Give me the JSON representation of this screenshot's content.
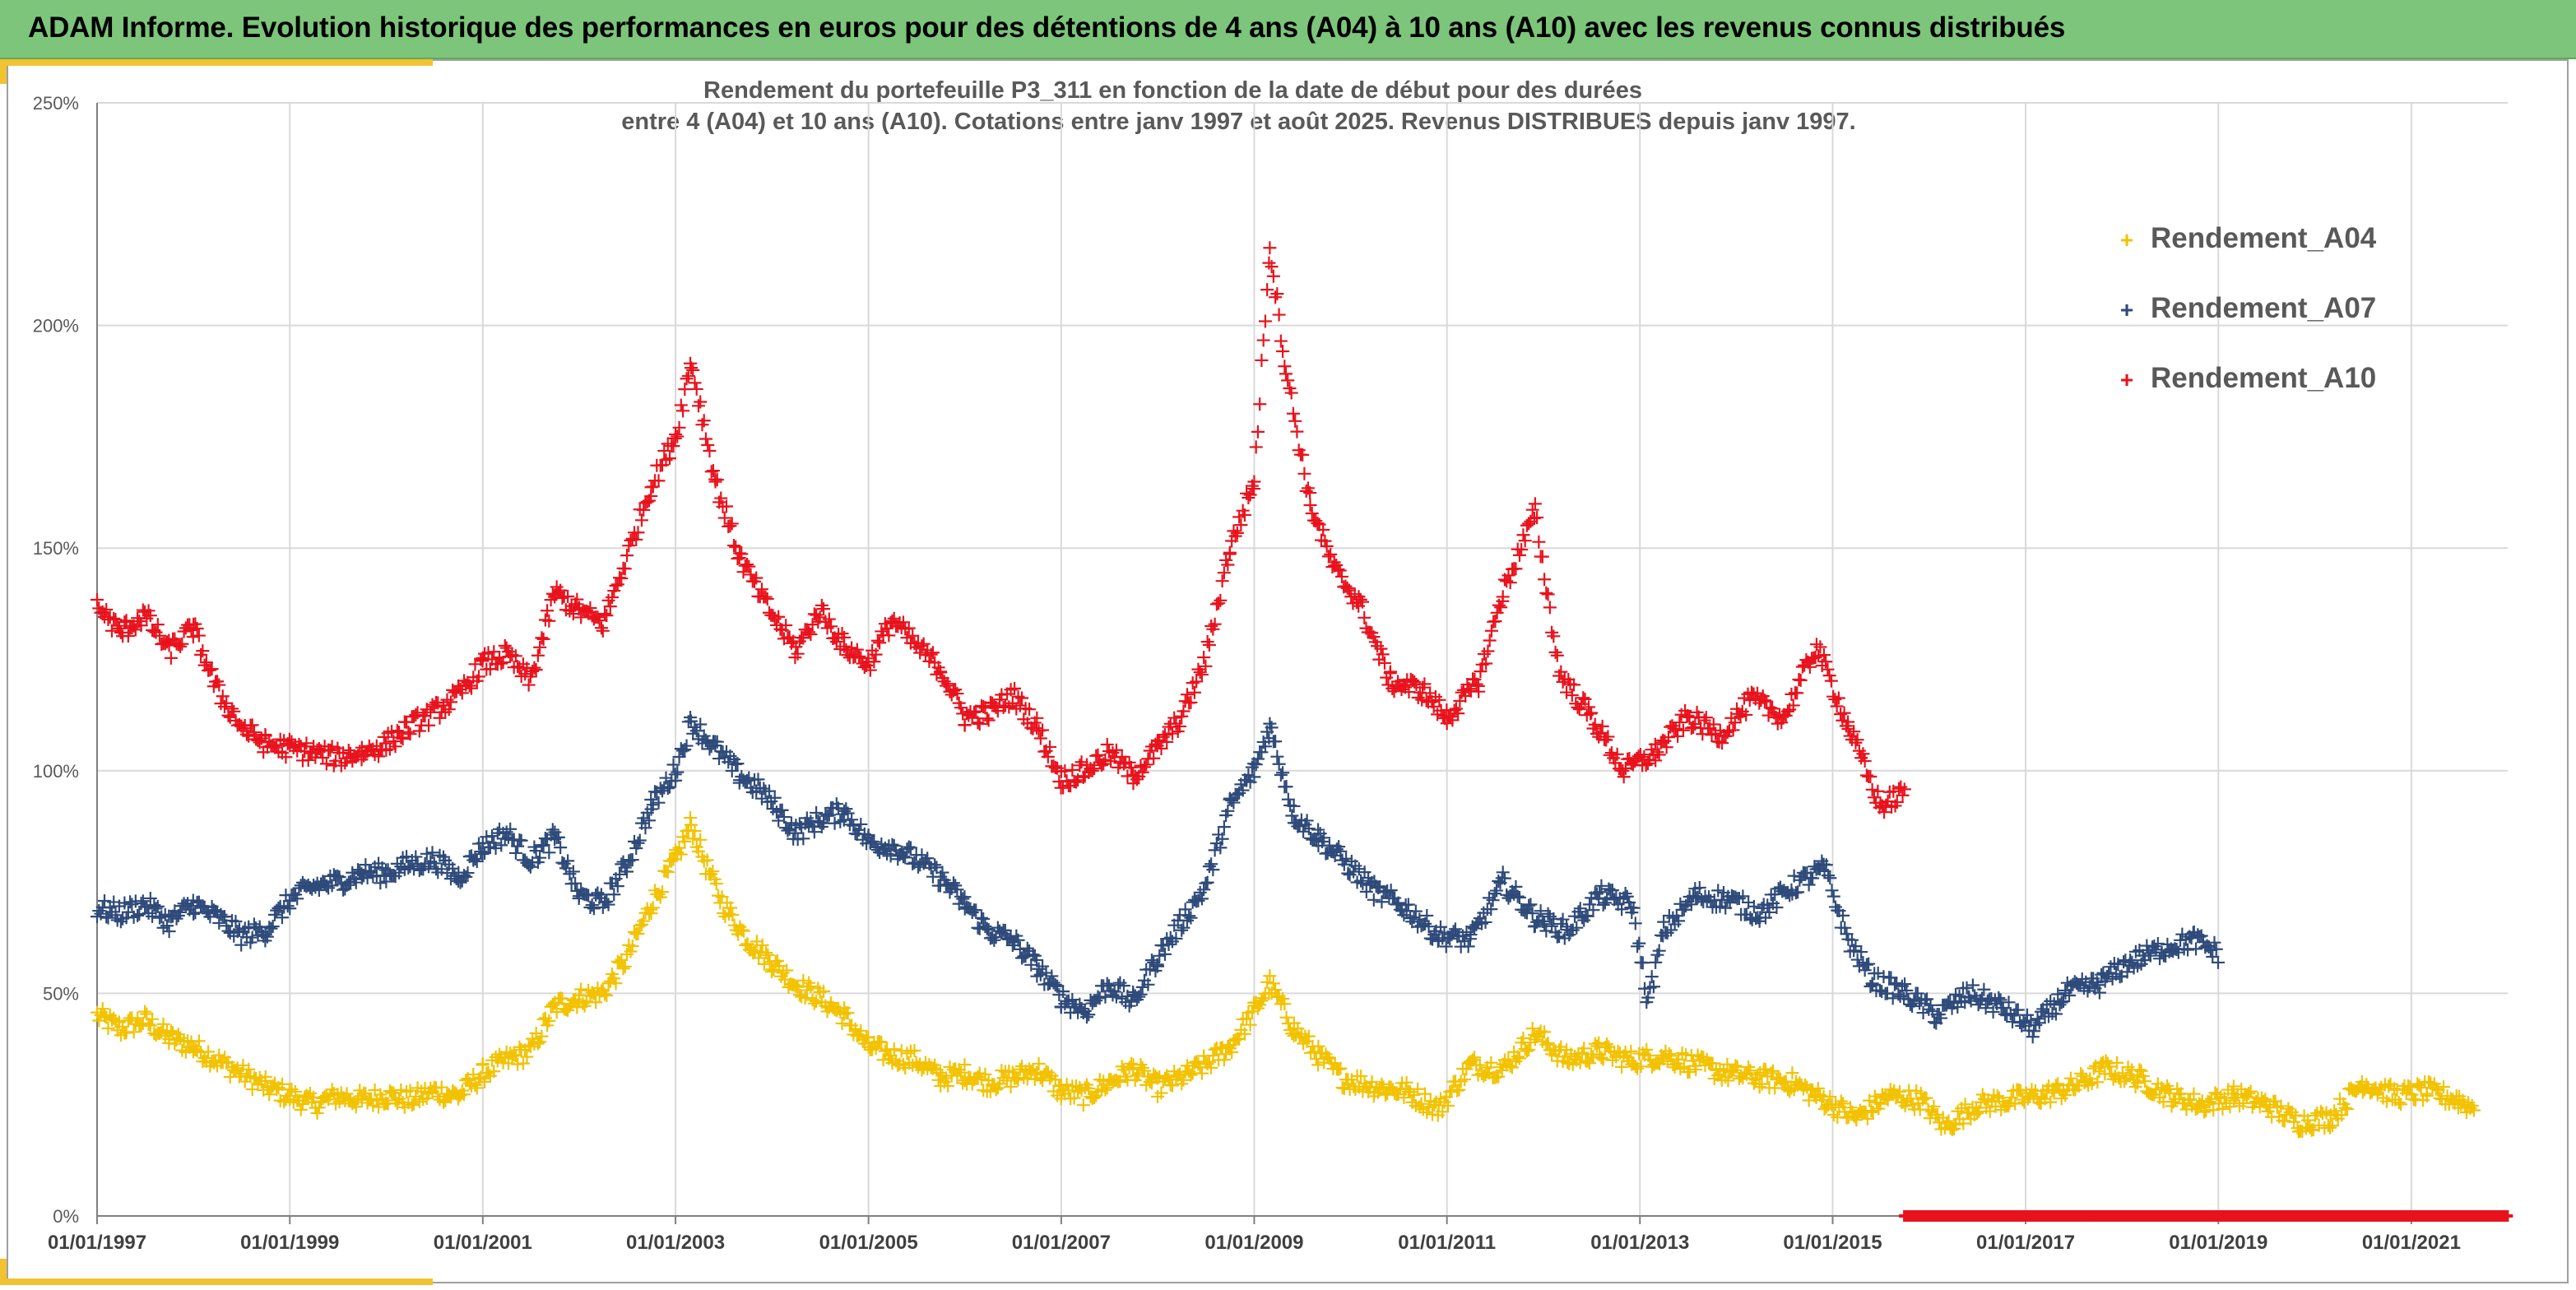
{
  "header": {
    "title": "ADAM Informe. Evolution historique des performances en euros pour des détentions de 4 ans (A04) à 10 ans (A10) avec les revenus connus distribués"
  },
  "chart_data": {
    "type": "scatter",
    "title_line1": "Rendement du portefeuille P3_311 en fonction de la date de début pour des durées",
    "title_line2": "entre 4 (A04) et 10 ans (A10). Cotations entre janv 1997 et août 2025. Revenus DISTRIBUES depuis janv 1997.",
    "xlabel": "",
    "ylabel": "",
    "xlim": [
      "1997-01-01",
      "2022-01-01"
    ],
    "ylim": [
      0,
      250
    ],
    "y_ticks": [
      "0%",
      "50%",
      "100%",
      "150%",
      "200%",
      "250%"
    ],
    "x_ticks": [
      "01/01/1997",
      "01/01/1999",
      "01/01/2001",
      "01/01/2003",
      "01/01/2005",
      "01/01/2007",
      "01/01/2009",
      "01/01/2011",
      "01/01/2013",
      "01/01/2015",
      "01/01/2017",
      "01/01/2019",
      "01/01/2021"
    ],
    "grid": true,
    "legend_position": "top-right",
    "marker": "+",
    "series": [
      {
        "name": "Rendement_A04",
        "color": "#f2c200",
        "points": [
          [
            "1997-01-01",
            45
          ],
          [
            "1997-04-01",
            42
          ],
          [
            "1997-07-01",
            44
          ],
          [
            "1997-10-01",
            40
          ],
          [
            "1998-01-01",
            38
          ],
          [
            "1998-04-01",
            35
          ],
          [
            "1998-07-01",
            32
          ],
          [
            "1998-10-01",
            29
          ],
          [
            "1999-01-01",
            27
          ],
          [
            "1999-04-01",
            25
          ],
          [
            "1999-07-01",
            27
          ],
          [
            "1999-10-01",
            26
          ],
          [
            "2000-01-01",
            27
          ],
          [
            "2000-04-01",
            26
          ],
          [
            "2000-07-01",
            28
          ],
          [
            "2000-10-01",
            27
          ],
          [
            "2001-01-01",
            32
          ],
          [
            "2001-04-01",
            35
          ],
          [
            "2001-07-01",
            37
          ],
          [
            "2001-10-01",
            47
          ],
          [
            "2002-01-01",
            49
          ],
          [
            "2002-04-01",
            50
          ],
          [
            "2002-07-01",
            58
          ],
          [
            "2002-10-01",
            70
          ],
          [
            "2003-01-01",
            80
          ],
          [
            "2003-03-01",
            88
          ],
          [
            "2003-05-01",
            78
          ],
          [
            "2003-07-01",
            70
          ],
          [
            "2003-10-01",
            62
          ],
          [
            "2004-01-01",
            57
          ],
          [
            "2004-04-01",
            52
          ],
          [
            "2004-07-01",
            49
          ],
          [
            "2004-10-01",
            45
          ],
          [
            "2005-01-01",
            38
          ],
          [
            "2005-04-01",
            36
          ],
          [
            "2005-07-01",
            35
          ],
          [
            "2005-10-01",
            31
          ],
          [
            "2006-01-01",
            32
          ],
          [
            "2006-04-01",
            30
          ],
          [
            "2006-07-01",
            31
          ],
          [
            "2006-10-01",
            33
          ],
          [
            "2007-01-01",
            28
          ],
          [
            "2007-04-01",
            27
          ],
          [
            "2007-07-01",
            30
          ],
          [
            "2007-10-01",
            33
          ],
          [
            "2008-01-01",
            29
          ],
          [
            "2008-04-01",
            31
          ],
          [
            "2008-07-01",
            34
          ],
          [
            "2008-10-01",
            38
          ],
          [
            "2009-01-01",
            46
          ],
          [
            "2009-03-01",
            52
          ],
          [
            "2009-06-01",
            42
          ],
          [
            "2009-09-01",
            36
          ],
          [
            "2009-12-01",
            31
          ],
          [
            "2010-04-01",
            29
          ],
          [
            "2010-08-01",
            28
          ],
          [
            "2010-12-01",
            24
          ],
          [
            "2011-04-01",
            34
          ],
          [
            "2011-08-01",
            33
          ],
          [
            "2011-12-01",
            41
          ],
          [
            "2012-04-01",
            35
          ],
          [
            "2012-08-01",
            37
          ],
          [
            "2012-12-01",
            35
          ],
          [
            "2013-04-01",
            36
          ],
          [
            "2013-08-01",
            34
          ],
          [
            "2013-12-01",
            32
          ],
          [
            "2014-04-01",
            31
          ],
          [
            "2014-08-01",
            30
          ],
          [
            "2014-12-01",
            26
          ],
          [
            "2015-04-01",
            22
          ],
          [
            "2015-08-01",
            27
          ],
          [
            "2015-12-01",
            26
          ],
          [
            "2016-03-01",
            20
          ],
          [
            "2016-07-01",
            25
          ],
          [
            "2016-11-01",
            26
          ],
          [
            "2017-03-01",
            27
          ],
          [
            "2017-07-01",
            29
          ],
          [
            "2017-11-01",
            33
          ],
          [
            "2018-03-01",
            31
          ],
          [
            "2018-07-01",
            27
          ],
          [
            "2018-11-01",
            25
          ],
          [
            "2019-03-01",
            27
          ],
          [
            "2019-07-01",
            25
          ],
          [
            "2019-11-01",
            21
          ],
          [
            "2020-03-01",
            22
          ],
          [
            "2020-07-01",
            30
          ],
          [
            "2020-11-01",
            27
          ],
          [
            "2021-03-01",
            28
          ],
          [
            "2021-07-01",
            26
          ],
          [
            "2021-09-01",
            24
          ]
        ]
      },
      {
        "name": "Rendement_A07",
        "color": "#2e4a7a",
        "points": [
          [
            "1997-01-01",
            69
          ],
          [
            "1997-04-01",
            68
          ],
          [
            "1997-07-01",
            70
          ],
          [
            "1997-10-01",
            66
          ],
          [
            "1998-01-01",
            70
          ],
          [
            "1998-04-01",
            67
          ],
          [
            "1998-07-01",
            63
          ],
          [
            "1998-10-01",
            64
          ],
          [
            "1999-01-01",
            71
          ],
          [
            "1999-04-01",
            74
          ],
          [
            "1999-07-01",
            75
          ],
          [
            "1999-10-01",
            77
          ],
          [
            "2000-01-01",
            77
          ],
          [
            "2000-04-01",
            79
          ],
          [
            "2000-07-01",
            80
          ],
          [
            "2000-10-01",
            76
          ],
          [
            "2001-01-01",
            83
          ],
          [
            "2001-04-01",
            86
          ],
          [
            "2001-07-01",
            80
          ],
          [
            "2001-10-01",
            85
          ],
          [
            "2002-01-01",
            72
          ],
          [
            "2002-04-01",
            70
          ],
          [
            "2002-07-01",
            79
          ],
          [
            "2002-10-01",
            92
          ],
          [
            "2003-01-01",
            100
          ],
          [
            "2003-03-01",
            111
          ],
          [
            "2003-06-01",
            105
          ],
          [
            "2003-09-01",
            99
          ],
          [
            "2003-12-01",
            95
          ],
          [
            "2004-04-01",
            86
          ],
          [
            "2004-07-01",
            89
          ],
          [
            "2004-10-01",
            91
          ],
          [
            "2005-01-01",
            84
          ],
          [
            "2005-04-01",
            83
          ],
          [
            "2005-07-01",
            80
          ],
          [
            "2005-10-01",
            76
          ],
          [
            "2006-01-01",
            70
          ],
          [
            "2006-04-01",
            64
          ],
          [
            "2006-07-01",
            62
          ],
          [
            "2006-10-01",
            56
          ],
          [
            "2007-01-01",
            49
          ],
          [
            "2007-04-01",
            46
          ],
          [
            "2007-07-01",
            52
          ],
          [
            "2007-10-01",
            48
          ],
          [
            "2008-01-01",
            58
          ],
          [
            "2008-04-01",
            66
          ],
          [
            "2008-07-01",
            74
          ],
          [
            "2008-10-01",
            92
          ],
          [
            "2009-01-01",
            100
          ],
          [
            "2009-03-01",
            110
          ],
          [
            "2009-06-01",
            90
          ],
          [
            "2009-09-01",
            85
          ],
          [
            "2009-12-01",
            80
          ],
          [
            "2010-04-01",
            73
          ],
          [
            "2010-08-01",
            69
          ],
          [
            "2010-12-01",
            63
          ],
          [
            "2011-04-01",
            62
          ],
          [
            "2011-08-01",
            75
          ],
          [
            "2011-12-01",
            67
          ],
          [
            "2012-04-01",
            64
          ],
          [
            "2012-08-01",
            72
          ],
          [
            "2012-12-01",
            70
          ],
          [
            "2013-02-01",
            48
          ],
          [
            "2013-04-01",
            64
          ],
          [
            "2013-08-01",
            72
          ],
          [
            "2013-12-01",
            71
          ],
          [
            "2014-04-01",
            68
          ],
          [
            "2014-08-01",
            74
          ],
          [
            "2014-12-01",
            78
          ],
          [
            "2015-03-01",
            62
          ],
          [
            "2015-06-01",
            53
          ],
          [
            "2015-10-01",
            50
          ],
          [
            "2016-02-01",
            45
          ],
          [
            "2016-06-01",
            50
          ],
          [
            "2016-10-01",
            47
          ],
          [
            "2017-02-01",
            42
          ],
          [
            "2017-06-01",
            50
          ],
          [
            "2017-10-01",
            52
          ],
          [
            "2018-02-01",
            57
          ],
          [
            "2018-06-01",
            60
          ],
          [
            "2018-10-01",
            62
          ],
          [
            "2019-01-01",
            59
          ]
        ]
      },
      {
        "name": "Rendement_A10",
        "color": "#e8121c",
        "points": [
          [
            "1997-01-01",
            137
          ],
          [
            "1997-04-01",
            131
          ],
          [
            "1997-07-01",
            135
          ],
          [
            "1997-10-01",
            127
          ],
          [
            "1998-01-01",
            132
          ],
          [
            "1998-04-01",
            118
          ],
          [
            "1998-07-01",
            110
          ],
          [
            "1998-10-01",
            106
          ],
          [
            "1999-01-01",
            105
          ],
          [
            "1999-04-01",
            104
          ],
          [
            "1999-07-01",
            103
          ],
          [
            "1999-10-01",
            104
          ],
          [
            "2000-01-01",
            106
          ],
          [
            "2000-04-01",
            110
          ],
          [
            "2000-07-01",
            113
          ],
          [
            "2000-10-01",
            117
          ],
          [
            "2001-01-01",
            124
          ],
          [
            "2001-04-01",
            126
          ],
          [
            "2001-07-01",
            120
          ],
          [
            "2001-10-01",
            140
          ],
          [
            "2002-01-01",
            136
          ],
          [
            "2002-04-01",
            133
          ],
          [
            "2002-07-01",
            148
          ],
          [
            "2002-10-01",
            164
          ],
          [
            "2003-01-01",
            175
          ],
          [
            "2003-03-01",
            192
          ],
          [
            "2003-06-01",
            165
          ],
          [
            "2003-09-01",
            148
          ],
          [
            "2003-12-01",
            138
          ],
          [
            "2004-04-01",
            127
          ],
          [
            "2004-07-01",
            136
          ],
          [
            "2004-10-01",
            128
          ],
          [
            "2005-01-01",
            124
          ],
          [
            "2005-04-01",
            134
          ],
          [
            "2005-07-01",
            128
          ],
          [
            "2005-10-01",
            123
          ],
          [
            "2006-01-01",
            112
          ],
          [
            "2006-04-01",
            113
          ],
          [
            "2006-07-01",
            117
          ],
          [
            "2006-10-01",
            110
          ],
          [
            "2007-01-01",
            98
          ],
          [
            "2007-04-01",
            100
          ],
          [
            "2007-07-01",
            104
          ],
          [
            "2007-10-01",
            99
          ],
          [
            "2008-01-01",
            105
          ],
          [
            "2008-04-01",
            112
          ],
          [
            "2008-07-01",
            125
          ],
          [
            "2008-10-01",
            150
          ],
          [
            "2009-01-01",
            165
          ],
          [
            "2009-03-01",
            218
          ],
          [
            "2009-05-01",
            190
          ],
          [
            "2009-08-01",
            160
          ],
          [
            "2009-11-01",
            145
          ],
          [
            "2010-02-01",
            138
          ],
          [
            "2010-06-01",
            120
          ],
          [
            "2010-10-01",
            118
          ],
          [
            "2011-01-01",
            112
          ],
          [
            "2011-05-01",
            120
          ],
          [
            "2011-08-01",
            140
          ],
          [
            "2011-12-01",
            158
          ],
          [
            "2012-03-01",
            122
          ],
          [
            "2012-07-01",
            112
          ],
          [
            "2012-11-01",
            100
          ],
          [
            "2013-03-01",
            104
          ],
          [
            "2013-07-01",
            112
          ],
          [
            "2013-11-01",
            108
          ],
          [
            "2014-03-01",
            116
          ],
          [
            "2014-07-01",
            112
          ],
          [
            "2014-11-01",
            128
          ],
          [
            "2015-03-01",
            110
          ],
          [
            "2015-07-01",
            92
          ],
          [
            "2015-10-01",
            95
          ]
        ]
      },
      {
        "name": "",
        "color": "#e8121c",
        "points": [
          [
            "2015-10-01",
            0
          ],
          [
            "2016-06-01",
            0
          ],
          [
            "2017-02-01",
            0
          ],
          [
            "2017-10-01",
            0
          ],
          [
            "2018-06-01",
            0
          ],
          [
            "2019-02-01",
            0
          ],
          [
            "2019-10-01",
            0
          ],
          [
            "2020-06-01",
            0
          ],
          [
            "2021-02-01",
            0
          ],
          [
            "2021-10-01",
            0
          ],
          [
            "2022-01-01",
            0
          ]
        ]
      }
    ]
  }
}
